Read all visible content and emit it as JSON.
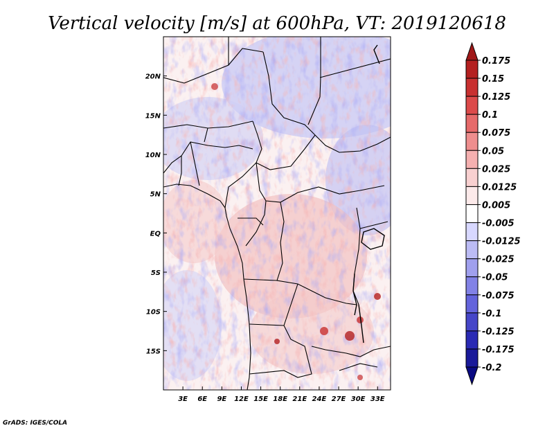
{
  "title": "Vertical velocity [m/s] at 600hPa, VT: 2019120618",
  "credit": "GrADS: IGES/COLA",
  "map": {
    "lon_range": [
      0,
      35
    ],
    "lat_range": [
      -20,
      25
    ],
    "lon_ticks": [
      "3E",
      "6E",
      "9E",
      "12E",
      "15E",
      "18E",
      "21E",
      "24E",
      "27E",
      "30E",
      "33E"
    ],
    "lat_ticks": [
      "20N",
      "15N",
      "10N",
      "5N",
      "EQ",
      "5S",
      "10S",
      "15S"
    ]
  },
  "colorbar": {
    "levels": [
      "0.175",
      "0.15",
      "0.125",
      "0.1",
      "0.075",
      "0.05",
      "0.025",
      "0.0125",
      "0.005",
      "-0.005",
      "-0.0125",
      "-0.025",
      "-0.05",
      "-0.075",
      "-0.1",
      "-0.125",
      "-0.175",
      "-0.2"
    ],
    "colors": [
      "#a01818",
      "#b42020",
      "#c83030",
      "#dc4a4a",
      "#e66a6a",
      "#ee8e8e",
      "#f5b0b0",
      "#f8d0d0",
      "#fceaea",
      "#ffffff",
      "#d8d8ff",
      "#bcbcf5",
      "#a0a0ee",
      "#8282e6",
      "#6464dc",
      "#4646c8",
      "#2a2ab4",
      "#1a1a9a",
      "#0a0a82"
    ]
  }
}
